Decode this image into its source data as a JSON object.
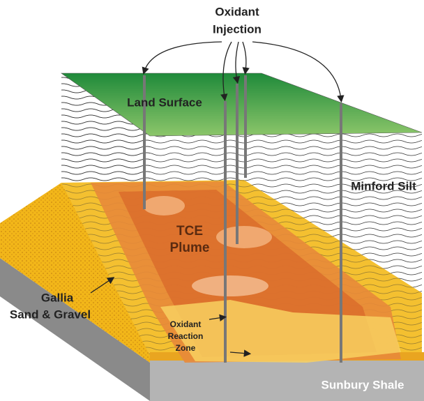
{
  "labels": {
    "oxidant_injection": [
      "Oxidant",
      "Injection"
    ],
    "land_surface": "Land Surface",
    "minford_silt": "Minford Silt",
    "tce_plume": [
      "TCE",
      "Plume"
    ],
    "gallia": [
      "Gallia",
      "Sand & Gravel"
    ],
    "reaction_zone": [
      "Oxidant",
      "Reaction",
      "Zone"
    ],
    "sunbury_shale": "Sunbury Shale"
  }
}
